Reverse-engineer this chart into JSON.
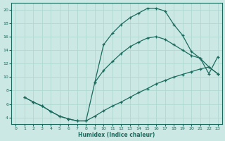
{
  "xlabel": "Humidex (Indice chaleur)",
  "bg_color": "#cce8e4",
  "grid_color": "#b0d8d2",
  "line_color": "#1a6b5e",
  "xlim": [
    -0.5,
    23.5
  ],
  "ylim": [
    3,
    21
  ],
  "xticks": [
    0,
    1,
    2,
    3,
    4,
    5,
    6,
    7,
    8,
    9,
    10,
    11,
    12,
    13,
    14,
    15,
    16,
    17,
    18,
    19,
    20,
    21,
    22,
    23
  ],
  "yticks": [
    4,
    6,
    8,
    10,
    12,
    14,
    16,
    18,
    20
  ],
  "top_x": [
    1,
    2,
    3,
    4,
    5,
    6,
    7,
    8,
    9,
    10,
    11,
    12,
    13,
    14,
    15,
    16,
    17,
    18,
    19,
    20,
    21,
    22,
    23
  ],
  "top_y": [
    7.0,
    6.3,
    5.7,
    4.9,
    4.2,
    3.8,
    3.5,
    3.5,
    9.2,
    14.8,
    16.5,
    17.8,
    18.8,
    19.5,
    20.2,
    20.2,
    19.8,
    17.8,
    16.2,
    13.8,
    12.8,
    10.5,
    13.0
  ],
  "diag_x": [
    1,
    2,
    3,
    4,
    5,
    6,
    7,
    8,
    9,
    10,
    11,
    12,
    13,
    14,
    15,
    16,
    17,
    18,
    19,
    20,
    21,
    22,
    23
  ],
  "diag_y": [
    7.0,
    6.3,
    5.7,
    4.9,
    4.2,
    3.8,
    3.5,
    3.5,
    4.2,
    5.0,
    5.7,
    6.3,
    7.0,
    7.7,
    8.3,
    9.0,
    9.5,
    10.0,
    10.4,
    10.8,
    11.2,
    11.5,
    10.5
  ],
  "mid_x": [
    9,
    10,
    11,
    12,
    13,
    14,
    15,
    16,
    17,
    18,
    19,
    20,
    21,
    22,
    23
  ],
  "mid_y": [
    9.2,
    11.0,
    12.3,
    13.5,
    14.5,
    15.2,
    15.8,
    16.0,
    15.6,
    14.8,
    14.0,
    13.2,
    12.8,
    11.5,
    10.5
  ]
}
